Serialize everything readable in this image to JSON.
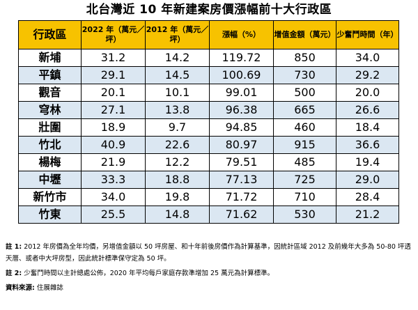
{
  "title": "北台灣近 10 年新建案房價漲幅前十大行政區",
  "table": {
    "headers": [
      "行政區",
      "2022 年（萬元／坪）",
      "2012 年（萬元／坪）",
      "漲幅（%）",
      "增值金額（萬元）",
      "少奮鬥時間（年）"
    ],
    "rows": [
      [
        "新埔",
        "31.2",
        "14.2",
        "119.72",
        "850",
        "34.0"
      ],
      [
        "平鎮",
        "29.1",
        "14.5",
        "100.69",
        "730",
        "29.2"
      ],
      [
        "觀音",
        "20.1",
        "10.1",
        "99.01",
        "500",
        "20.0"
      ],
      [
        "穹林",
        "27.1",
        "13.8",
        "96.38",
        "665",
        "26.6"
      ],
      [
        "壯圍",
        "18.9",
        "9.7",
        "94.85",
        "460",
        "18.4"
      ],
      [
        "竹北",
        "40.9",
        "22.6",
        "80.97",
        "915",
        "36.6"
      ],
      [
        "楊梅",
        "21.9",
        "12.2",
        "79.51",
        "485",
        "19.4"
      ],
      [
        "中壢",
        "33.3",
        "18.8",
        "77.13",
        "725",
        "29.0"
      ],
      [
        "新竹市",
        "34.0",
        "19.8",
        "71.72",
        "710",
        "28.4"
      ],
      [
        "竹東",
        "25.5",
        "14.8",
        "71.62",
        "530",
        "21.2"
      ]
    ]
  },
  "notes": {
    "note1_label": "註 1:",
    "note1_text": "2012 年房價為全年均價，另增值金額以 50 坪房屋、和十年前後房價作為計算基準，因統計區域 2012 及前幾年大多為 50-80 坪透天厝、或者中大坪房型，因此統計標準保守定為 50 坪。",
    "note2_label": "註 2:",
    "note2_text": "少奮鬥時間以主計總處公佈，2020 年平均每戶家庭存款準增加 25 萬元為計算標準。",
    "source_label": "資料來源:",
    "source_text": "住展雜誌"
  },
  "colors": {
    "header_bg": "#f7c200",
    "stripe_bg": "#dbe7f2"
  }
}
